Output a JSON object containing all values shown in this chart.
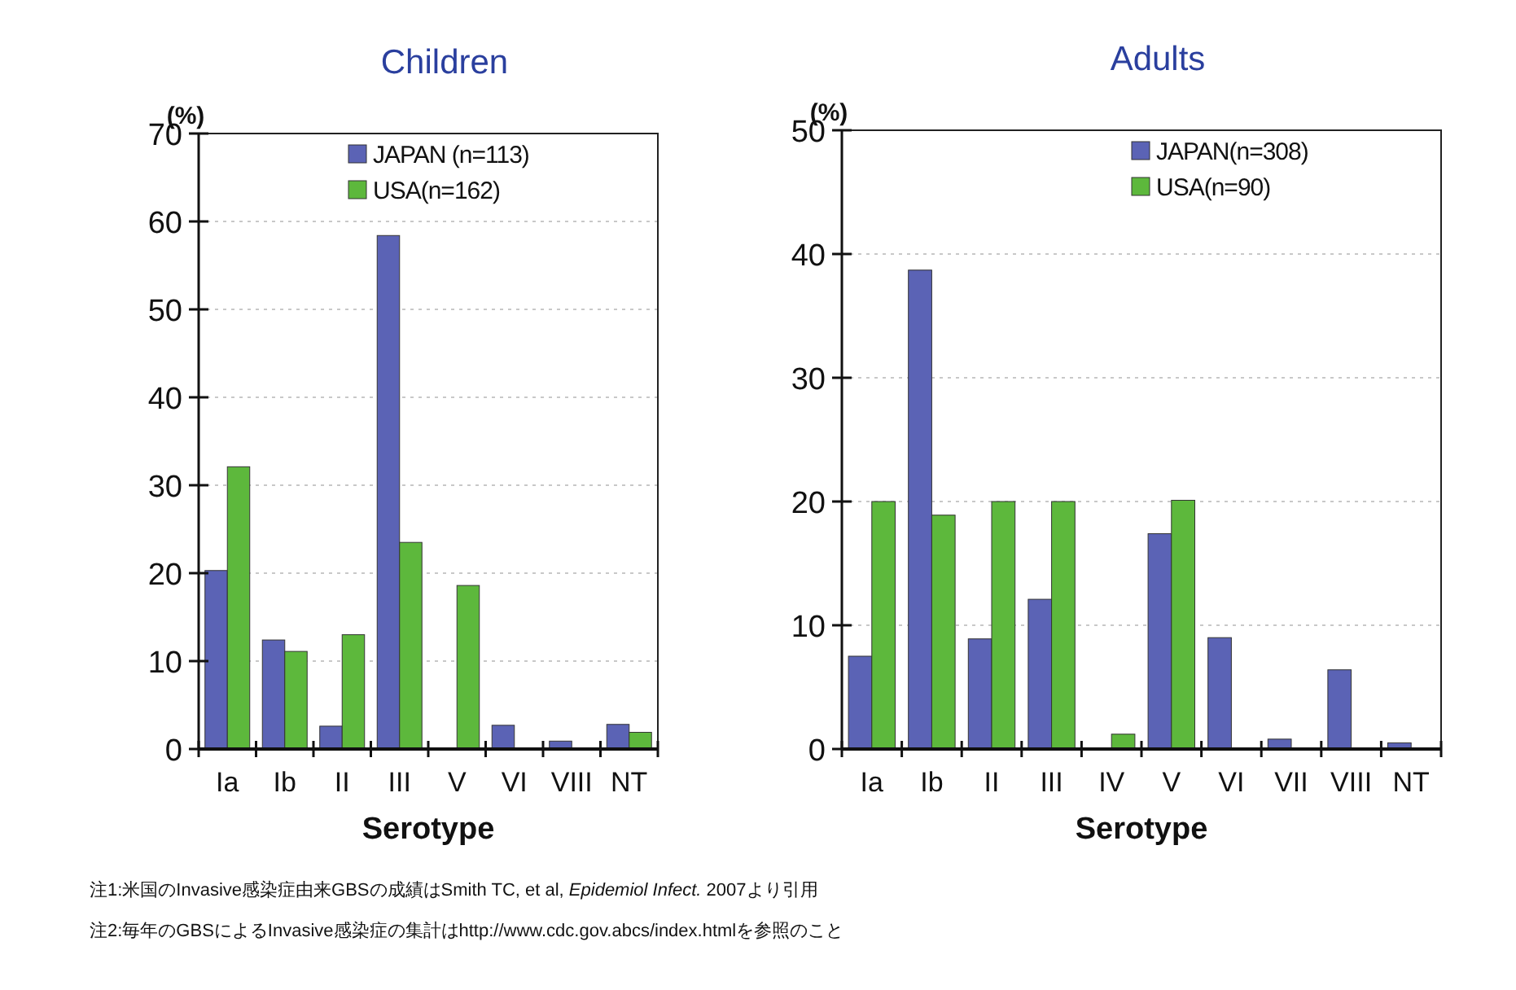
{
  "chart_data": [
    {
      "type": "bar",
      "title": "Children",
      "xlabel": "Serotype",
      "ylabel": "(%)",
      "categories": [
        "Ia",
        "Ib",
        "II",
        "III",
        "V",
        "VI",
        "VIII",
        "NT"
      ],
      "series": [
        {
          "name": "JAPAN  (n=113)",
          "color": "#5b63b5",
          "values": [
            20.3,
            12.4,
            2.6,
            58.4,
            0,
            2.7,
            0.9,
            2.8
          ]
        },
        {
          "name": "USA(n=162)",
          "color": "#5db83c",
          "values": [
            32.1,
            11.1,
            13.0,
            23.5,
            18.6,
            0,
            0,
            1.9
          ]
        }
      ],
      "ylim": [
        0,
        70
      ],
      "yticks": [
        0,
        10,
        20,
        30,
        40,
        50,
        60,
        70
      ],
      "grid": "y",
      "legend": "top right"
    },
    {
      "type": "bar",
      "title": "Adults",
      "xlabel": "Serotype",
      "ylabel": "(%)",
      "categories": [
        "Ia",
        "Ib",
        "II",
        "III",
        "IV",
        "V",
        "VI",
        "VII",
        "VIII",
        "NT"
      ],
      "series": [
        {
          "name": "JAPAN(n=308)",
          "color": "#5b63b5",
          "values": [
            7.5,
            38.7,
            8.9,
            12.1,
            0,
            17.4,
            9.0,
            0.8,
            6.4,
            0.5
          ]
        },
        {
          "name": "USA(n=90)",
          "color": "#5db83c",
          "values": [
            20.0,
            18.9,
            20.0,
            20.0,
            1.2,
            20.1,
            0,
            0,
            0,
            0
          ]
        }
      ],
      "ylim": [
        0,
        50
      ],
      "yticks": [
        0,
        10,
        20,
        30,
        40,
        50
      ],
      "grid": "y",
      "legend": "top right",
      "annotations": [
        "注1:米国のInvasive感染症由来GBSの成績はSmith TC, et al, *Epidemiol Infect.* 2007より引用",
        "注2:毎年のGBSによるInvasive感染症の集計はhttp://www.cdc.gov.abcs/index.htmlを参照のこと"
      ]
    }
  ]
}
